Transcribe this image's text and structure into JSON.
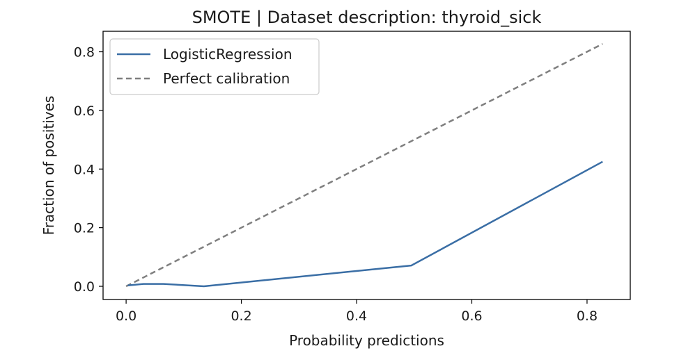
{
  "chart_data": {
    "type": "line",
    "title": "SMOTE | Dataset description: thyroid_sick",
    "xlabel": "Probability predictions",
    "ylabel": "Fraction of positives",
    "xlim": [
      -0.04,
      0.875
    ],
    "ylim": [
      -0.045,
      0.87
    ],
    "xticks": [
      0.0,
      0.2,
      0.4,
      0.6,
      0.8
    ],
    "xtick_labels": [
      "0.0",
      "0.2",
      "0.4",
      "0.6",
      "0.8"
    ],
    "yticks": [
      0.0,
      0.2,
      0.4,
      0.6,
      0.8
    ],
    "ytick_labels": [
      "0.0",
      "0.2",
      "0.4",
      "0.6",
      "0.8"
    ],
    "grid": false,
    "legend_position": "top-left",
    "series": [
      {
        "name": "LogisticRegression",
        "color": "#3a6ea5",
        "style": "solid",
        "x": [
          0.003,
          0.03,
          0.065,
          0.135,
          0.495,
          0.827
        ],
        "y": [
          0.003,
          0.008,
          0.008,
          0.0,
          0.071,
          0.425
        ]
      },
      {
        "name": "Perfect calibration",
        "color": "#7f7f7f",
        "style": "dashed",
        "x": [
          0.0,
          0.827
        ],
        "y": [
          0.0,
          0.827
        ]
      }
    ]
  }
}
